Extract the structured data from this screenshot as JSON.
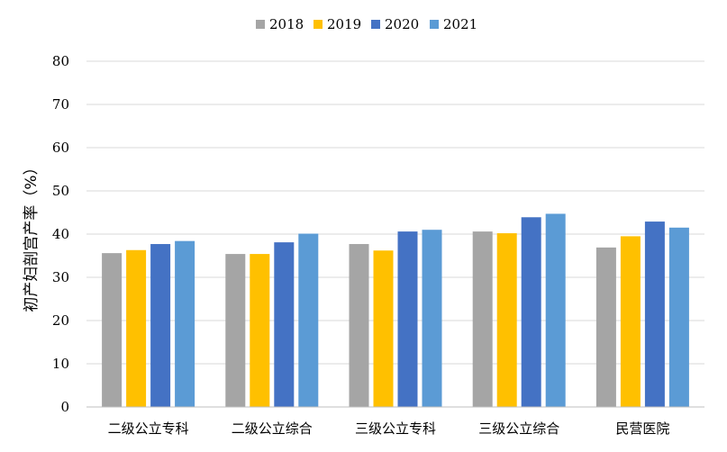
{
  "chart_data": {
    "type": "bar",
    "ylabel": "初产妇剖宫产率（%）",
    "xlabel": "",
    "ylim": [
      0,
      80
    ],
    "yticks": [
      "0",
      "10",
      "20",
      "30",
      "40",
      "50",
      "60",
      "70",
      "80"
    ],
    "grid": true,
    "legend_position": "top",
    "categories": [
      "二级公立专科",
      "二级公立综合",
      "三级公立专科",
      "三级公立综合",
      "民营医院"
    ],
    "series": [
      {
        "name": "2018",
        "color": "#a5a5a5",
        "values": [
          35.6,
          35.4,
          37.7,
          40.6,
          36.9
        ]
      },
      {
        "name": "2019",
        "color": "#ffc000",
        "values": [
          36.3,
          35.4,
          36.2,
          40.2,
          39.5
        ]
      },
      {
        "name": "2020",
        "color": "#4472c4",
        "values": [
          37.7,
          38.1,
          40.6,
          43.9,
          42.9
        ]
      },
      {
        "name": "2021",
        "color": "#5b9bd5",
        "values": [
          38.4,
          40.1,
          41.0,
          44.7,
          41.5
        ]
      }
    ]
  }
}
